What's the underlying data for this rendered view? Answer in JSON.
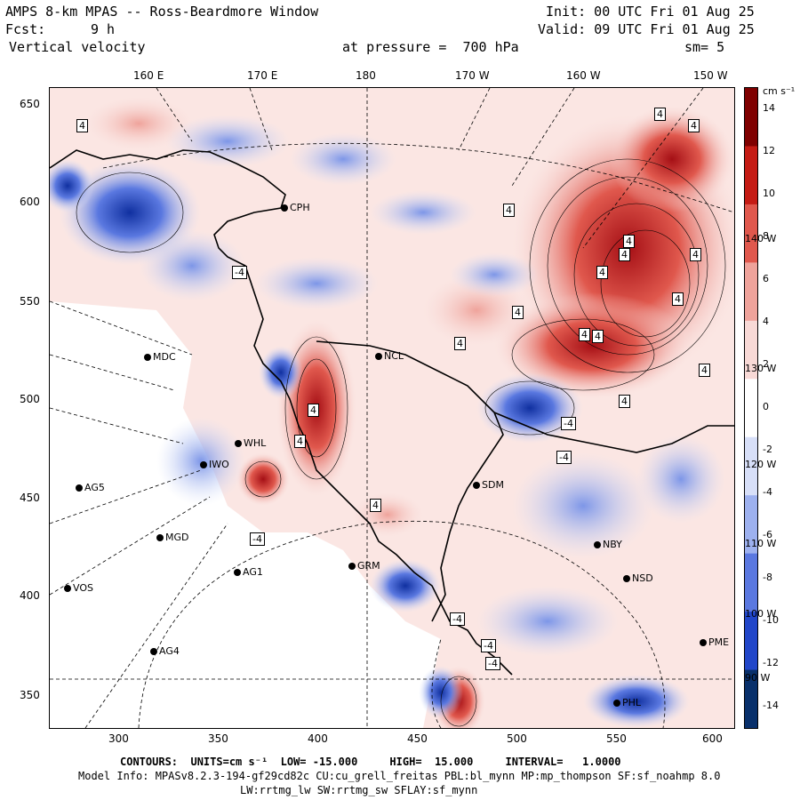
{
  "header": {
    "title": "AMPS 8-km MPAS -- Ross-Beardmore Window",
    "init": "Init: 00 UTC Fri 01 Aug 25",
    "fcst_label": "Fcst:",
    "fcst_value": "9 h",
    "valid": "Valid: 09 UTC Fri 01 Aug 25",
    "field": "Vertical velocity",
    "pressure": "at pressure =  700 hPa",
    "smooth": "sm= 5"
  },
  "map": {
    "lon_labels": [
      "160 E",
      "170 E",
      "180",
      "170 W",
      "160 W",
      "150 W"
    ],
    "y_ticks": [
      "650",
      "600",
      "550",
      "500",
      "450",
      "400",
      "350"
    ],
    "x_ticks": [
      "300",
      "350",
      "400",
      "450",
      "500",
      "550",
      "600"
    ],
    "right_lon_labels": [
      "140 W",
      "130 W",
      "120 W",
      "110 W",
      "100 W",
      "90 W"
    ],
    "stations": [
      {
        "name": "MDC"
      },
      {
        "name": "NCL"
      },
      {
        "name": "WHL"
      },
      {
        "name": "IWO"
      },
      {
        "name": "AG5"
      },
      {
        "name": "SDM"
      },
      {
        "name": "MGD"
      },
      {
        "name": "NBY"
      },
      {
        "name": "AG1"
      },
      {
        "name": "GRM"
      },
      {
        "name": "NSD"
      },
      {
        "name": "VOS"
      },
      {
        "name": "AG4"
      },
      {
        "name": "PME"
      },
      {
        "name": "PHL"
      },
      {
        "name": "CPH"
      }
    ],
    "contour_labels": [
      "4",
      "-4"
    ]
  },
  "colorbar": {
    "units": "cm s⁻¹",
    "labels": [
      "14",
      "12",
      "10",
      "8",
      "6",
      "4",
      "2",
      "0",
      "-2",
      "-4",
      "-6",
      "-8",
      "-10",
      "-12",
      "-14"
    ],
    "min": -15,
    "max": 15,
    "colors": [
      "#08306b",
      "#2146c9",
      "#5a78e0",
      "#9db1ef",
      "#d7dff8",
      "#ffffff",
      "#f8d9d6",
      "#efa39b",
      "#e0584d",
      "#c51b14",
      "#7f0000"
    ]
  },
  "footer": {
    "contours": "CONTOURS:  UNITS=cm s⁻¹  LOW= -15.000     HIGH=  15.000     INTERVAL=   1.0000",
    "model_info": "Model Info: MPASv8.2.3-194-gf29cd82c CU:cu_grell_freitas PBL:bl_mynn MP:mp_thompson SF:sf_noahmp 8.0",
    "model_info2": "LW:rrtmg_lw SW:rrtmg_sw SFLAY:sf_mynn"
  }
}
